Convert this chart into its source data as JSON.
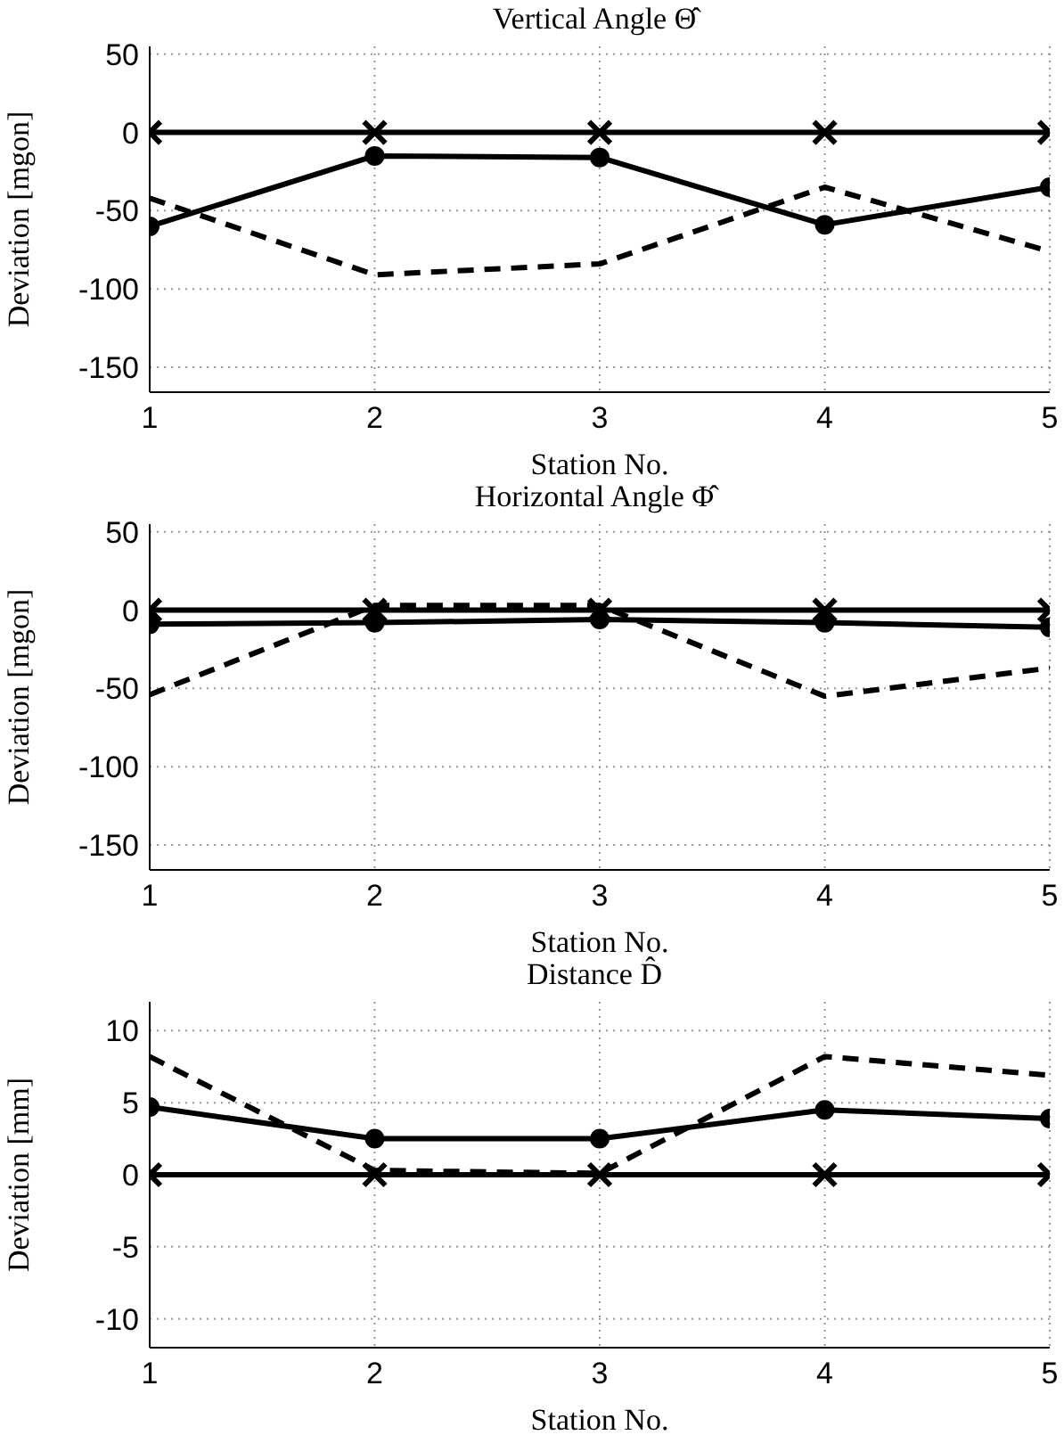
{
  "chart_data": [
    {
      "type": "line",
      "title": "Vertical Angle Θ̂",
      "xlabel": "Station No.",
      "ylabel": "Deviation [mgon]",
      "x": [
        1,
        2,
        3,
        4,
        5
      ],
      "xlim": [
        1,
        5
      ],
      "xticks": [
        1,
        2,
        3,
        4,
        5
      ],
      "ylim": [
        -166,
        55
      ],
      "yticks": [
        -150,
        -100,
        -50,
        0,
        50
      ],
      "grid": true,
      "series": [
        {
          "color": "#000000",
          "marker": "cross",
          "line_style": "solid",
          "values": [
            0,
            0,
            0,
            0,
            0
          ]
        },
        {
          "color": "#000000",
          "marker": "circle",
          "line_style": "solid",
          "values": [
            -60,
            -15,
            -16,
            -59,
            -35
          ]
        },
        {
          "color": "#000000",
          "marker": "none",
          "line_style": "dashed",
          "values": [
            -42,
            -91,
            -84,
            -35,
            -76
          ]
        }
      ]
    },
    {
      "type": "line",
      "title": "Horizontal Angle Φ̂",
      "xlabel": "Station No.",
      "ylabel": "Deviation [mgon]",
      "x": [
        1,
        2,
        3,
        4,
        5
      ],
      "xlim": [
        1,
        5
      ],
      "xticks": [
        1,
        2,
        3,
        4,
        5
      ],
      "ylim": [
        -166,
        55
      ],
      "yticks": [
        -150,
        -100,
        -50,
        0,
        50
      ],
      "grid": true,
      "series": [
        {
          "color": "#000000",
          "marker": "cross",
          "line_style": "solid",
          "values": [
            0,
            0,
            0,
            0,
            0
          ]
        },
        {
          "color": "#000000",
          "marker": "circle",
          "line_style": "solid",
          "values": [
            -9,
            -8,
            -6,
            -8,
            -11
          ]
        },
        {
          "color": "#000000",
          "marker": "none",
          "line_style": "dashed",
          "values": [
            -54,
            3,
            3,
            -55,
            -37
          ]
        }
      ]
    },
    {
      "type": "line",
      "title": "Distance D̂",
      "xlabel": "Station No.",
      "ylabel": "Deviation [mm]",
      "x": [
        1,
        2,
        3,
        4,
        5
      ],
      "xlim": [
        1,
        5
      ],
      "xticks": [
        1,
        2,
        3,
        4,
        5
      ],
      "ylim": [
        -12,
        12
      ],
      "yticks": [
        -10,
        -5,
        0,
        5,
        10
      ],
      "grid": true,
      "series": [
        {
          "color": "#000000",
          "marker": "cross",
          "line_style": "solid",
          "values": [
            0,
            0,
            0,
            0,
            0
          ]
        },
        {
          "color": "#000000",
          "marker": "circle",
          "line_style": "solid",
          "values": [
            4.7,
            2.5,
            2.5,
            4.5,
            3.9
          ]
        },
        {
          "color": "#000000",
          "marker": "none",
          "line_style": "dashed",
          "values": [
            8.2,
            0.3,
            0.1,
            8.2,
            6.9
          ]
        }
      ]
    }
  ]
}
